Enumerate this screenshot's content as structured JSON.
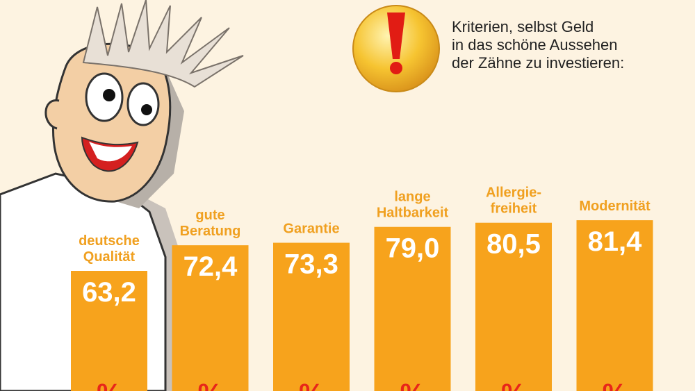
{
  "note": {
    "lines": [
      "Kriterien, selbst Geld",
      "in das schöne Aussehen",
      "der Zähne zu investieren:"
    ],
    "icon": "exclamation-icon"
  },
  "colors": {
    "background": "#fdf3e1",
    "bar": "#f7a31c",
    "label": "#f0a020",
    "value": "#ffffff",
    "percent": "#e8261a"
  },
  "chart_data": {
    "type": "bar",
    "categories": [
      "deutsche Qualität",
      "gute Beratung",
      "Garantie",
      "lange Haltbarkeit",
      "Allergie-freiheit",
      "Modernität"
    ],
    "label_lines": [
      [
        "deutsche",
        "Qualität"
      ],
      [
        "gute",
        "Beratung"
      ],
      [
        "Garantie"
      ],
      [
        "lange",
        "Haltbarkeit"
      ],
      [
        "Allergie-",
        "freiheit"
      ],
      [
        "Modernität"
      ]
    ],
    "values": [
      63.2,
      72.4,
      73.3,
      79.0,
      80.5,
      81.4
    ],
    "value_labels": [
      "63,2",
      "72,4",
      "73,3",
      "79,0",
      "80,5",
      "81,4"
    ],
    "unit": "%",
    "grid": false,
    "legend": "none"
  }
}
